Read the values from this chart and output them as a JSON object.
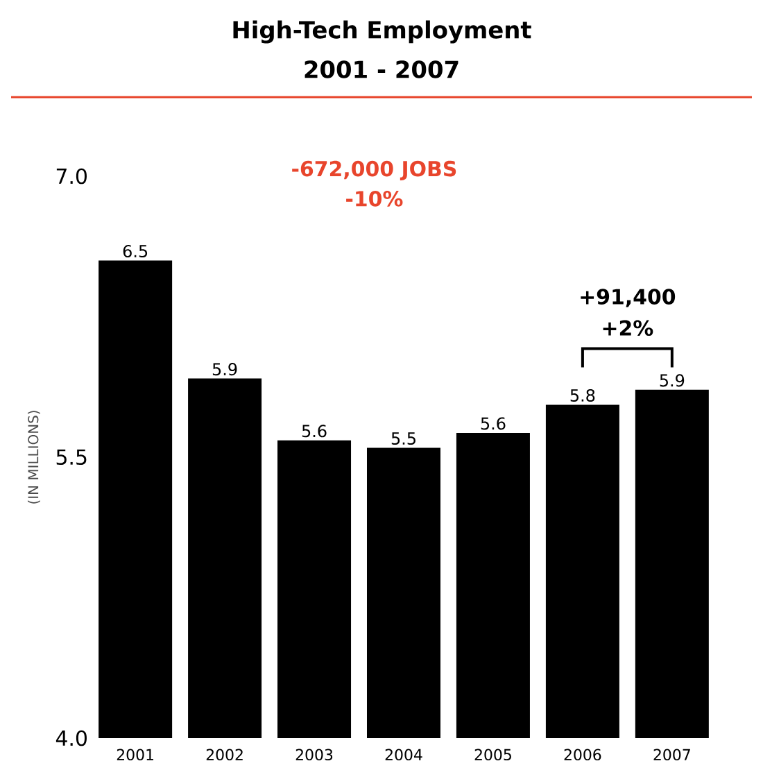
{
  "chart_data": {
    "type": "bar",
    "title": "High-Tech Employment",
    "subtitle": "2001 - 2007",
    "ylabel": "(IN MILLIONS)",
    "categories": [
      "2001",
      "2002",
      "2003",
      "2004",
      "2005",
      "2006",
      "2007"
    ],
    "values": [
      6.55,
      5.92,
      5.59,
      5.55,
      5.63,
      5.78,
      5.86
    ],
    "value_labels": [
      "6.5",
      "5.9",
      "5.6",
      "5.5",
      "5.6",
      "5.8",
      "5.9"
    ],
    "color": "#000000",
    "ylim": [
      4.0,
      7.0
    ],
    "yticks": [
      {
        "value": 4.0,
        "label": "4.0"
      },
      {
        "value": 5.5,
        "label": "5.5"
      },
      {
        "value": 7.0,
        "label": "7.0"
      }
    ],
    "grid": false,
    "annotations": [
      "-672,000 JOBS",
      "-10%",
      "+91,400",
      "+2%"
    ]
  }
}
